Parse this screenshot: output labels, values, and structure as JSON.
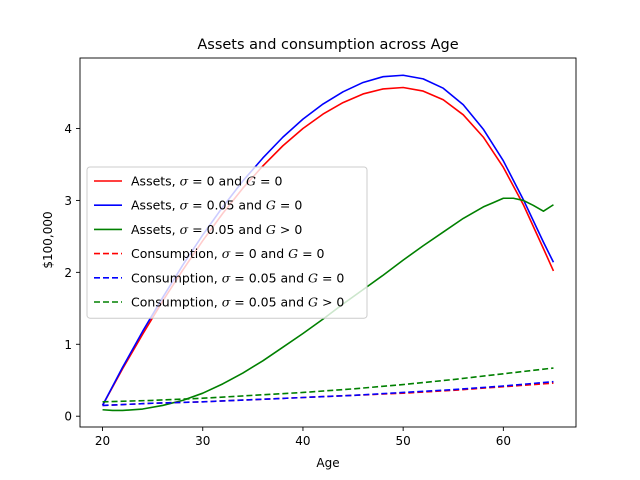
{
  "chart_data": {
    "type": "line",
    "title": "Assets and consumption across Age",
    "xlabel": "Age",
    "ylabel": "$100,000",
    "xlim": [
      17.75,
      67.25
    ],
    "ylim": [
      -0.15,
      4.98
    ],
    "xticks": [
      20,
      30,
      40,
      50,
      60
    ],
    "yticks": [
      0,
      1,
      2,
      3,
      4
    ],
    "grid": false,
    "legend_position": "center-left",
    "series": [
      {
        "name": "Assets, σ = 0 and G = 0",
        "name_parts": [
          "Assets, ",
          "σ",
          " = 0 and ",
          "G",
          " = 0"
        ],
        "color": "#ff0000",
        "style": "solid",
        "x": [
          20,
          22,
          24,
          26,
          28,
          30,
          32,
          34,
          36,
          38,
          40,
          42,
          44,
          46,
          48,
          50,
          52,
          54,
          56,
          58,
          60,
          62,
          64,
          65
        ],
        "y": [
          0.15,
          0.66,
          1.14,
          1.6,
          2.03,
          2.44,
          2.82,
          3.17,
          3.48,
          3.76,
          4.0,
          4.2,
          4.36,
          4.48,
          4.55,
          4.57,
          4.52,
          4.4,
          4.19,
          3.88,
          3.46,
          2.94,
          2.33,
          2.02
        ]
      },
      {
        "name": "Assets, σ = 0.05 and G = 0",
        "name_parts": [
          "Assets, ",
          "σ",
          " = 0.05 and ",
          "G",
          " = 0"
        ],
        "color": "#0000ff",
        "style": "solid",
        "x": [
          20,
          22,
          24,
          26,
          28,
          30,
          32,
          34,
          36,
          38,
          40,
          42,
          44,
          46,
          48,
          50,
          52,
          54,
          56,
          58,
          60,
          62,
          64,
          65
        ],
        "y": [
          0.15,
          0.68,
          1.18,
          1.65,
          2.1,
          2.52,
          2.91,
          3.27,
          3.59,
          3.88,
          4.13,
          4.34,
          4.51,
          4.64,
          4.72,
          4.74,
          4.69,
          4.56,
          4.33,
          3.99,
          3.55,
          3.01,
          2.42,
          2.14
        ]
      },
      {
        "name": "Assets, σ = 0.05 and G > 0",
        "name_parts": [
          "Assets, ",
          "σ",
          " = 0.05 and ",
          "G",
          " > 0"
        ],
        "color": "#008000",
        "style": "solid",
        "x": [
          20,
          21,
          22,
          24,
          26,
          28,
          30,
          32,
          34,
          36,
          38,
          40,
          42,
          44,
          46,
          48,
          50,
          52,
          54,
          56,
          58,
          59,
          60,
          61,
          62,
          63,
          64,
          65
        ],
        "y": [
          0.09,
          0.08,
          0.08,
          0.1,
          0.15,
          0.22,
          0.32,
          0.45,
          0.6,
          0.77,
          0.96,
          1.15,
          1.35,
          1.56,
          1.76,
          1.96,
          2.17,
          2.37,
          2.56,
          2.75,
          2.91,
          2.97,
          3.03,
          3.03,
          3.0,
          2.93,
          2.85,
          2.94
        ]
      },
      {
        "name": "Consumption, σ = 0 and G = 0",
        "name_parts": [
          "Consumption, ",
          "σ",
          " = 0 and ",
          "G",
          " = 0"
        ],
        "color": "#ff0000",
        "style": "dashed",
        "x": [
          20,
          25,
          30,
          35,
          40,
          45,
          50,
          55,
          60,
          65
        ],
        "y": [
          0.15,
          0.18,
          0.2,
          0.23,
          0.26,
          0.29,
          0.32,
          0.36,
          0.41,
          0.46
        ]
      },
      {
        "name": "Consumption, σ = 0.05 and G = 0",
        "name_parts": [
          "Consumption, ",
          "σ",
          " = 0.05 and ",
          "G",
          " = 0"
        ],
        "color": "#0000ff",
        "style": "dashed",
        "x": [
          20,
          25,
          30,
          35,
          40,
          45,
          50,
          55,
          60,
          65
        ],
        "y": [
          0.15,
          0.18,
          0.2,
          0.23,
          0.26,
          0.29,
          0.33,
          0.37,
          0.42,
          0.48
        ]
      },
      {
        "name": "Consumption, σ = 0.05 and G > 0",
        "name_parts": [
          "Consumption, ",
          "σ",
          " = 0.05 and ",
          "G",
          " > 0"
        ],
        "color": "#008000",
        "style": "dashed",
        "x": [
          20,
          25,
          30,
          35,
          40,
          45,
          50,
          55,
          60,
          65
        ],
        "y": [
          0.2,
          0.22,
          0.25,
          0.29,
          0.33,
          0.38,
          0.44,
          0.51,
          0.59,
          0.67
        ]
      }
    ]
  }
}
